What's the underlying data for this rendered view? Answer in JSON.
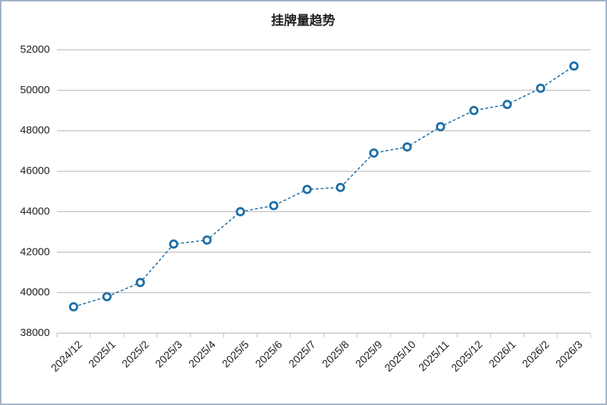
{
  "chart_data": {
    "type": "line",
    "title": "挂牌量趋势",
    "categories": [
      "2024/12",
      "2025/1",
      "2025/2",
      "2025/3",
      "2025/4",
      "2025/5",
      "2025/6",
      "2025/7",
      "2025/8",
      "2025/9",
      "2025/10",
      "2025/11",
      "2025/12",
      "2026/1",
      "2026/2",
      "2026/3"
    ],
    "series": [
      {
        "name": "挂牌量",
        "color": "#1f6fa6",
        "values": [
          39300,
          39800,
          40500,
          42400,
          42600,
          44000,
          44300,
          45100,
          45200,
          46900,
          47200,
          48200,
          49000,
          49300,
          50100,
          51200
        ]
      }
    ],
    "ylim": [
      38000,
      52000
    ],
    "yticks": [
      38000,
      40000,
      42000,
      44000,
      46000,
      48000,
      50000,
      52000
    ],
    "grid": true
  }
}
